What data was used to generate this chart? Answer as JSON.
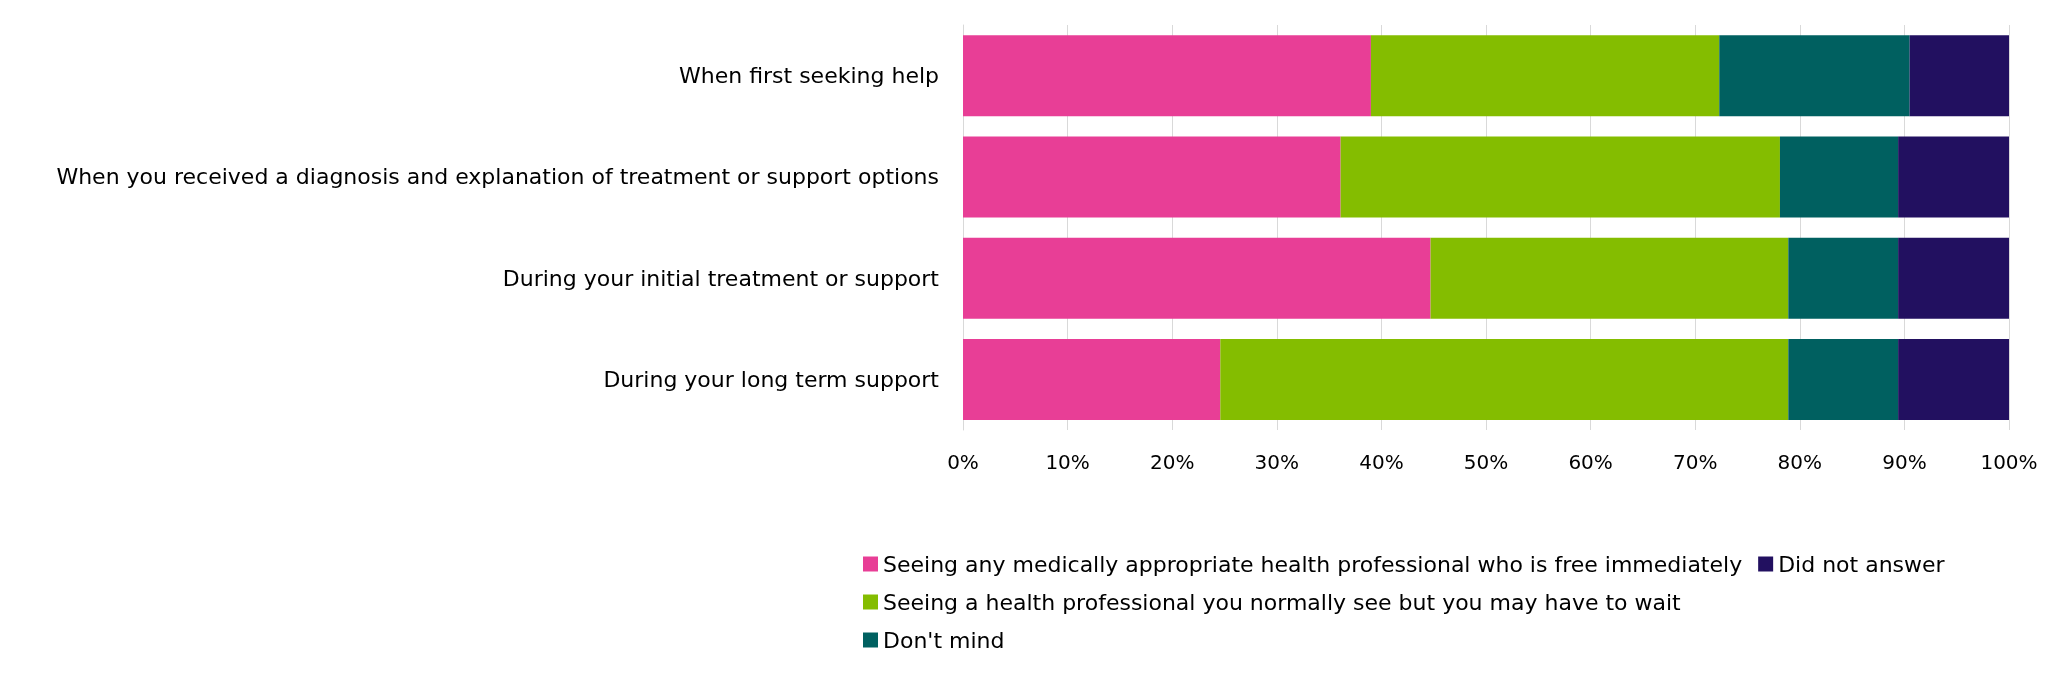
{
  "chart_data": {
    "type": "bar",
    "orientation": "horizontal",
    "stacked": true,
    "categories": [
      "When first seeking help",
      "When you received a diagnosis and explanation of treatment or support options",
      "During your initial treatment or support",
      "During your long term support"
    ],
    "series": [
      {
        "name": "Seeing any medically appropriate health professional who is free immediately",
        "color": "#e83e96",
        "values": [
          39,
          36.1,
          44.7,
          24.6
        ]
      },
      {
        "name": "Seeing a health professional you normally see but you may have to wait",
        "color": "#84bd00",
        "values": [
          33.3,
          42,
          34.2,
          54.3
        ]
      },
      {
        "name": "Don't mind",
        "color": "#006060",
        "values": [
          18.2,
          11.3,
          10.5,
          10.5
        ]
      },
      {
        "name": "Did not answer",
        "color": "#221060",
        "values": [
          9.5,
          10.6,
          10.6,
          10.6
        ]
      }
    ],
    "xlim": [
      0,
      100
    ],
    "xticks": [
      {
        "value": 0,
        "label": "0%"
      },
      {
        "value": 10,
        "label": "10%"
      },
      {
        "value": 20,
        "label": "20%"
      },
      {
        "value": 30,
        "label": "30%"
      },
      {
        "value": 40,
        "label": "40%"
      },
      {
        "value": 50,
        "label": "50%"
      },
      {
        "value": 60,
        "label": "60%"
      },
      {
        "value": 70,
        "label": "70%"
      },
      {
        "value": 80,
        "label": "80%"
      },
      {
        "value": 90,
        "label": "90%"
      },
      {
        "value": 100,
        "label": "100%"
      }
    ],
    "grid": "x",
    "legend": "bottom"
  }
}
